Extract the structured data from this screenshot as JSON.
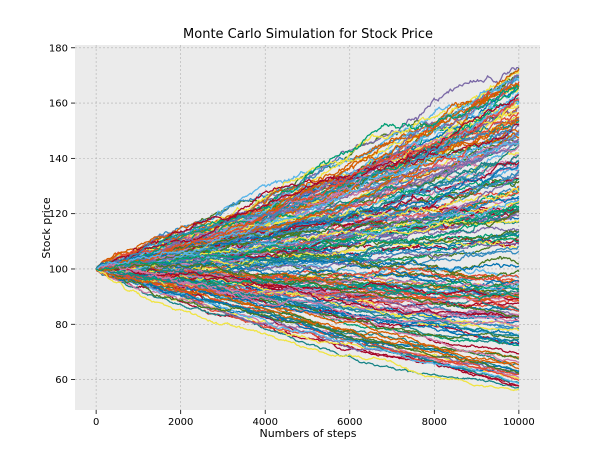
{
  "chart_data": {
    "type": "line",
    "title": "Monte Carlo Simulation for Stock Price",
    "xlabel": "Numbers of steps",
    "ylabel": "Stock price",
    "xlim": [
      -500,
      10500
    ],
    "ylim": [
      49,
      181
    ],
    "x_ticks": [
      0,
      2000,
      4000,
      6000,
      8000,
      10000
    ],
    "y_ticks": [
      60,
      80,
      100,
      120,
      140,
      160,
      180
    ],
    "grid": true,
    "legend": "none",
    "background_color": "#ebebeb",
    "grid_color": "#b0b0b0",
    "start_price": 100,
    "steps": 10000,
    "num_paths": 200,
    "ending_price_range": [
      55,
      174
    ],
    "palette": [
      "#348abd",
      "#a60628",
      "#7a68a6",
      "#467821",
      "#d55e00",
      "#cc79a7",
      "#56b4e9",
      "#009e73",
      "#f0e442",
      "#0072b2",
      "#e24a33",
      "#188487"
    ]
  }
}
